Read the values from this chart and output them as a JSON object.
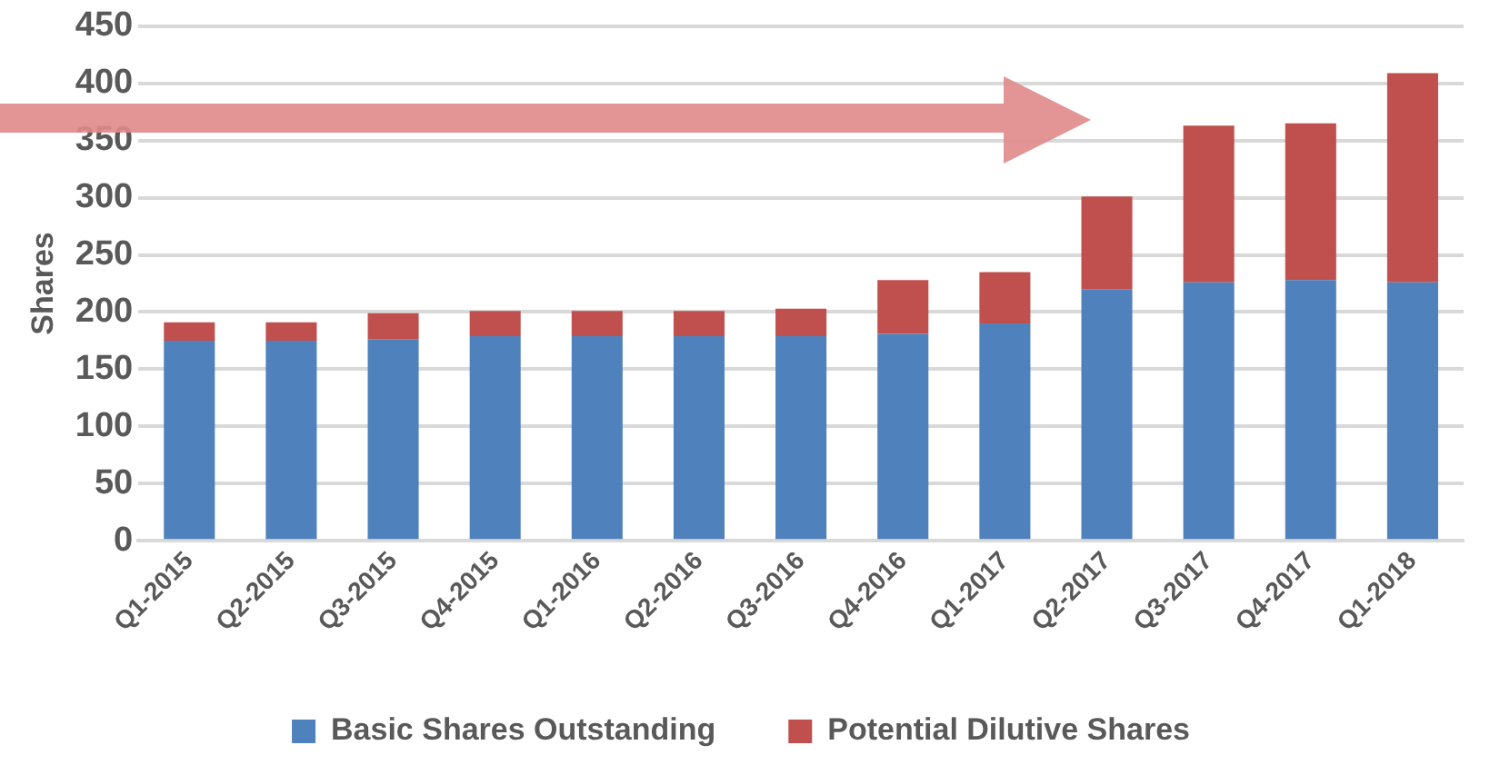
{
  "chart_data": {
    "type": "bar",
    "stacked": true,
    "ylabel": "Shares",
    "categories": [
      "Q1-2015",
      "Q2-2015",
      "Q3-2015",
      "Q4-2015",
      "Q1-2016",
      "Q2-2016",
      "Q3-2016",
      "Q4-2016",
      "Q1-2017",
      "Q2-2017",
      "Q3-2017",
      "Q4-2017",
      "Q1-2018"
    ],
    "series": [
      {
        "name": "Basic Shares Outstanding",
        "color": "#4f81bd",
        "values": [
          175,
          175,
          176,
          179,
          179,
          179,
          179,
          181,
          190,
          220,
          226,
          228,
          226
        ]
      },
      {
        "name": "Potential Dilutive Shares",
        "color": "#c0504d",
        "values": [
          16,
          16,
          23,
          22,
          22,
          22,
          24,
          47,
          45,
          81,
          137,
          137,
          183
        ]
      }
    ],
    "ylim": [
      0,
      450
    ],
    "yticks": [
      0,
      50,
      100,
      150,
      200,
      250,
      300,
      350,
      400,
      450
    ],
    "grid": "y",
    "legend": "bottom"
  }
}
